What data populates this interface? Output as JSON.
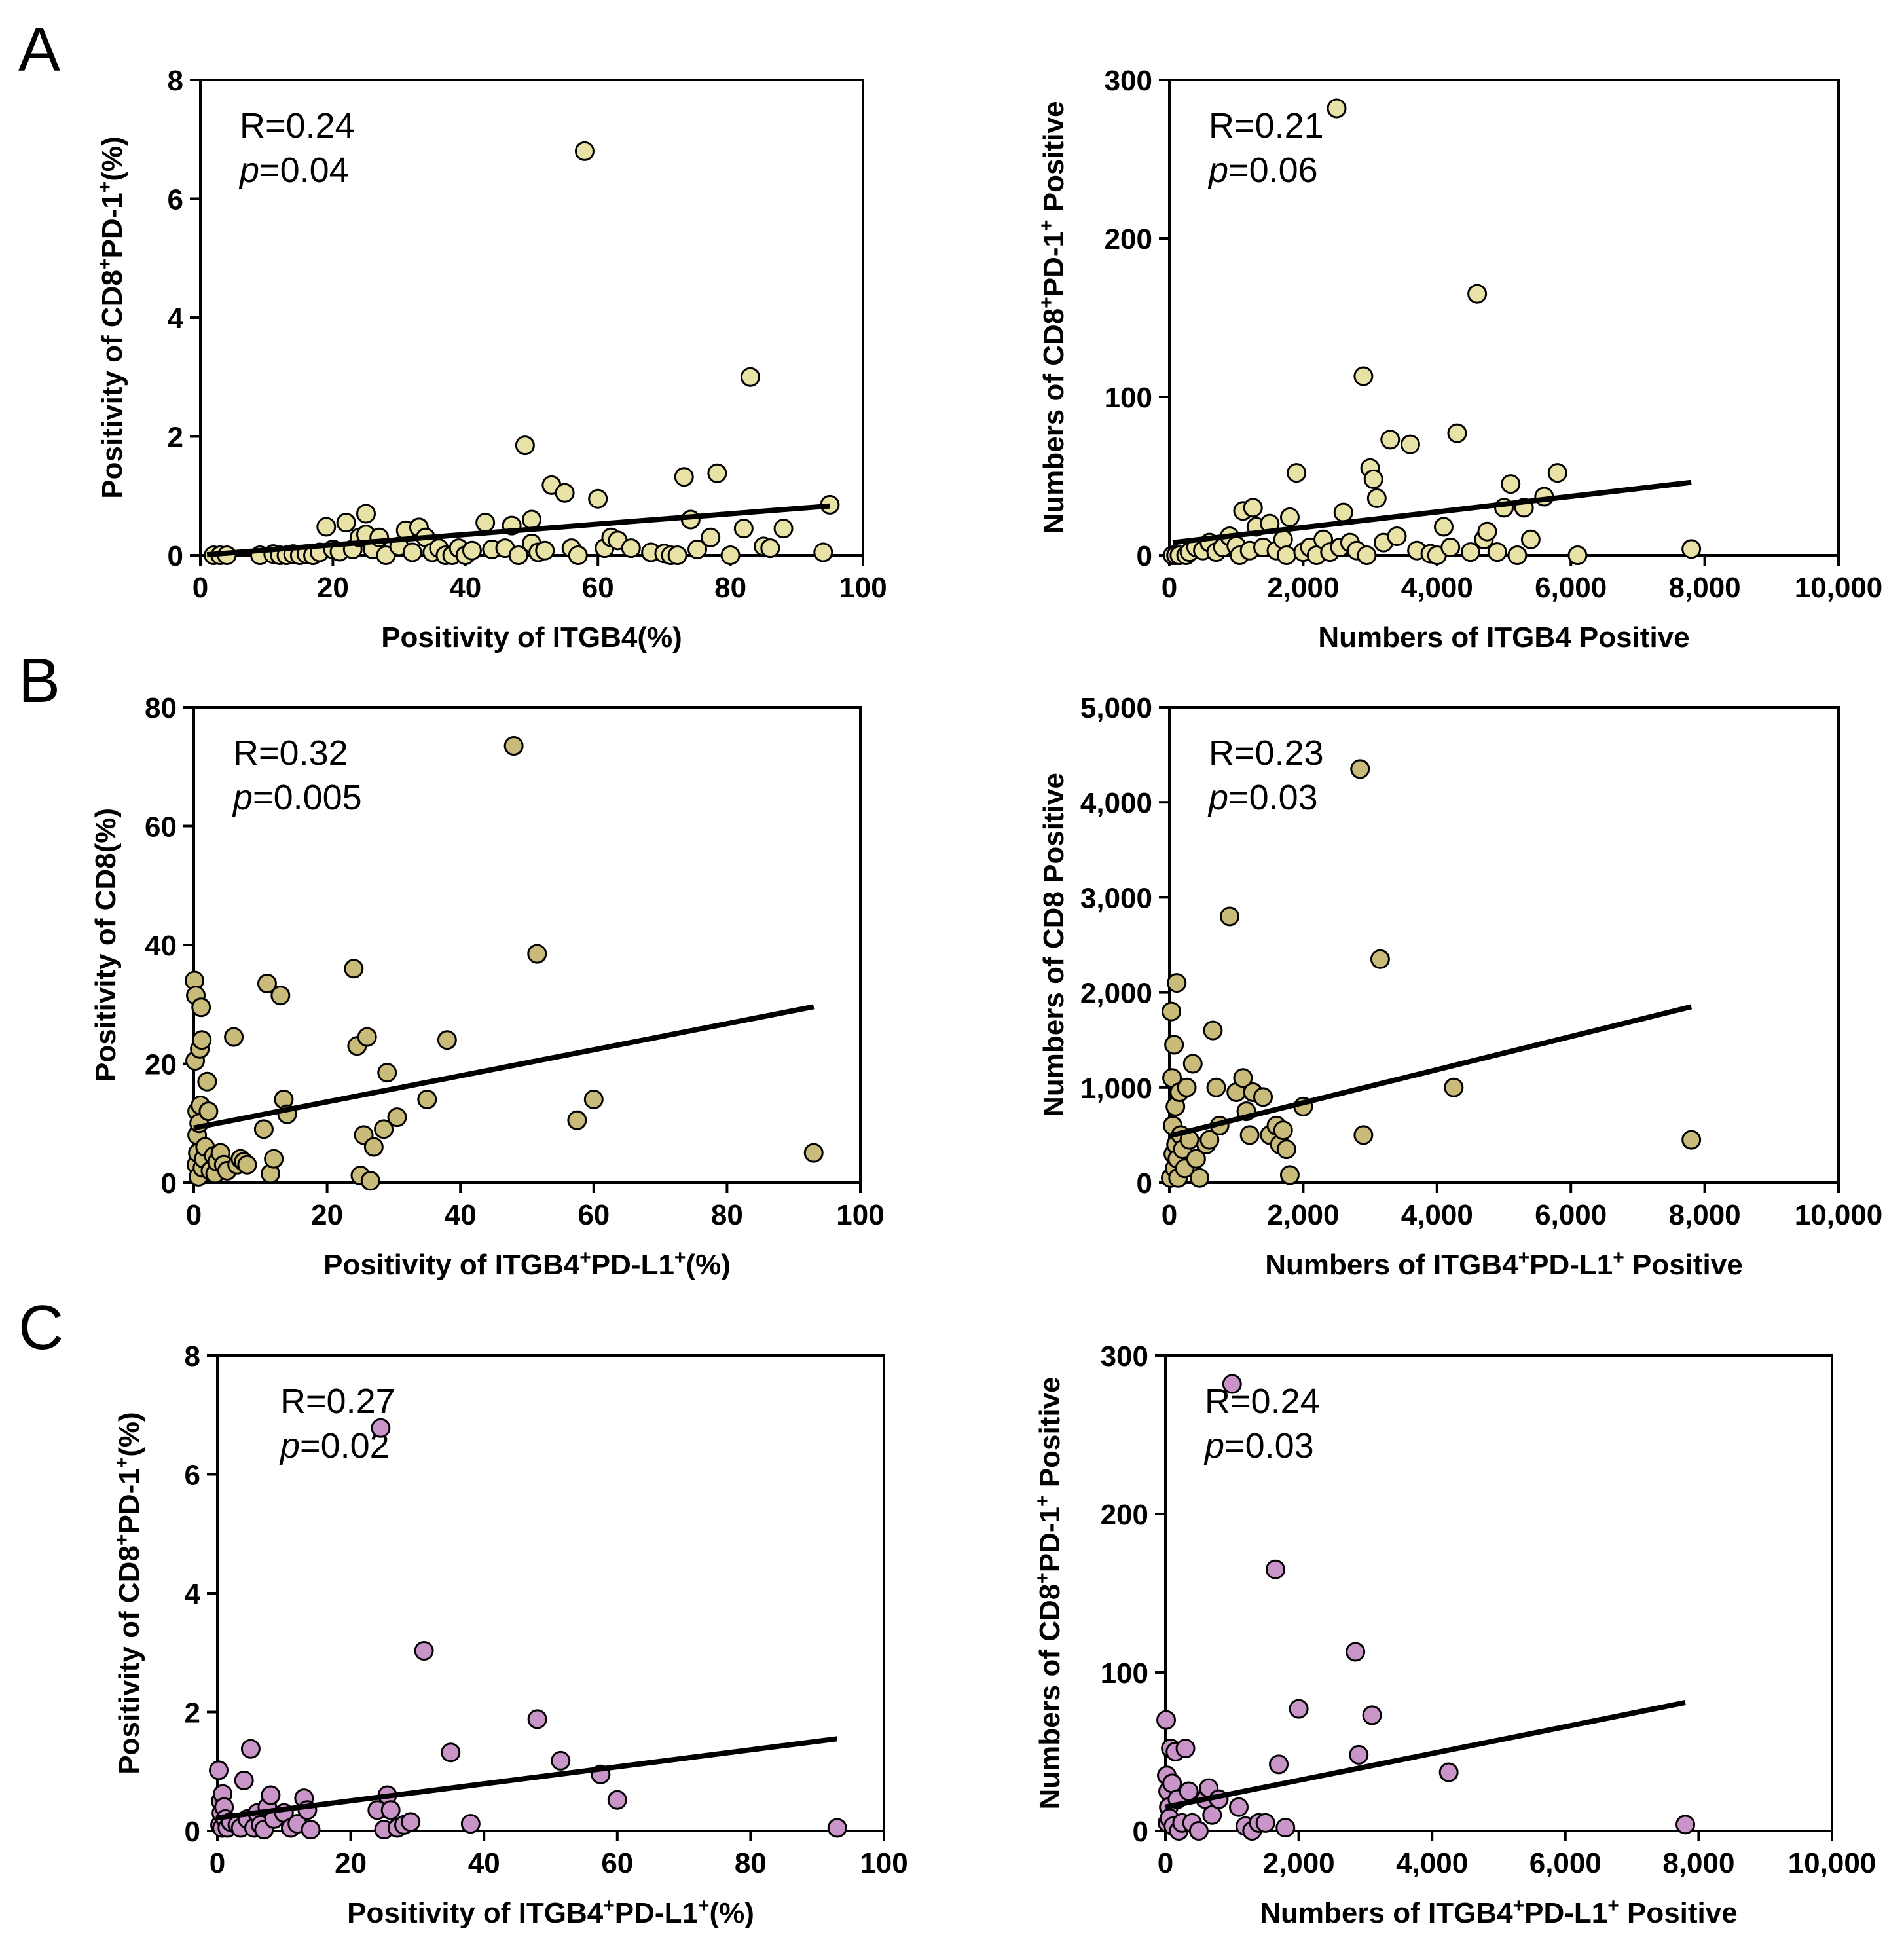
{
  "figure": {
    "panel_letters": [
      "A",
      "B",
      "C"
    ]
  },
  "colors": {
    "yellow_marker": "#e9e2a7",
    "tan_marker": "#c9bb7a",
    "pink_marker": "#c994c7",
    "axis": "#000000"
  },
  "chart_data": [
    {
      "type": "scatter",
      "title": "",
      "xlabel": "Positivity of ITGB4(%)",
      "ylabel": "Positivity of CD8⁺PD-1⁺(%)",
      "xlim": [
        0,
        100
      ],
      "ylim": [
        0,
        8
      ],
      "xticks": [
        0,
        20,
        40,
        60,
        80,
        100
      ],
      "xtick_labels": [
        "0",
        "20",
        "40",
        "60",
        "80",
        "100"
      ],
      "yticks": [
        0,
        2,
        4,
        6,
        8
      ],
      "ytick_labels": [
        "0",
        "2",
        "4",
        "6",
        "8"
      ],
      "r_text": "R=0.24",
      "p_label": "p",
      "p_value": "=0.04",
      "marker_color": "#e9e2a7",
      "fit_line": [
        [
          1,
          0.01
        ],
        [
          95,
          0.83
        ]
      ],
      "x": [
        2,
        3,
        4,
        9,
        11,
        12,
        13,
        14,
        15,
        16,
        17,
        18,
        19,
        20,
        21,
        22,
        23,
        24,
        25,
        25,
        26,
        27,
        28,
        30,
        31,
        32,
        33,
        34,
        35,
        36,
        37,
        38,
        39,
        40,
        41,
        43,
        44,
        46,
        47,
        48,
        49,
        50,
        50,
        51,
        52,
        53,
        55,
        56,
        57,
        58,
        60,
        61,
        62,
        63,
        65,
        68,
        70,
        71,
        72,
        73,
        74,
        75,
        77,
        78,
        80,
        82,
        83,
        85,
        86,
        88,
        94,
        95
      ],
      "y": [
        0.0,
        0.0,
        0.0,
        0.0,
        0.02,
        0.0,
        0.0,
        0.02,
        0.0,
        0.02,
        0.0,
        0.05,
        0.48,
        0.1,
        0.06,
        0.55,
        0.1,
        0.3,
        0.7,
        0.35,
        0.1,
        0.3,
        0.0,
        0.15,
        0.42,
        0.05,
        0.47,
        0.3,
        0.05,
        0.12,
        0.0,
        0.0,
        0.12,
        0.0,
        0.08,
        0.55,
        0.1,
        0.12,
        0.5,
        0.0,
        1.85,
        0.6,
        0.2,
        0.05,
        0.08,
        1.18,
        1.05,
        0.12,
        0.0,
        6.8,
        0.95,
        0.12,
        0.3,
        0.25,
        0.12,
        0.05,
        0.03,
        0.0,
        0.0,
        1.32,
        0.6,
        0.1,
        0.3,
        1.38,
        0.0,
        0.45,
        3.0,
        0.15,
        0.12,
        0.45,
        0.05,
        0.85
      ]
    },
    {
      "type": "scatter",
      "title": "",
      "xlabel": "Numbers of ITGB4 Positive",
      "ylabel": "Numbers of CD8⁺PD-1⁺ Positive",
      "xlim": [
        0,
        10000
      ],
      "ylim": [
        0,
        300
      ],
      "xticks": [
        0,
        2000,
        4000,
        6000,
        8000,
        10000
      ],
      "xtick_labels": [
        "0",
        "2,000",
        "4,000",
        "6,000",
        "8,000",
        "10,000"
      ],
      "yticks": [
        0,
        100,
        200,
        300
      ],
      "ytick_labels": [
        "0",
        "100",
        "200",
        "300"
      ],
      "r_text": "R=0.21",
      "p_label": "p",
      "p_value": "=0.06",
      "marker_color": "#e9e2a7",
      "fit_line": [
        [
          50,
          8
        ],
        [
          7800,
          46
        ]
      ],
      "x": [
        50,
        100,
        150,
        250,
        300,
        400,
        500,
        600,
        700,
        800,
        900,
        1000,
        1050,
        1100,
        1200,
        1250,
        1300,
        1400,
        1500,
        1600,
        1700,
        1750,
        1800,
        1900,
        2000,
        2100,
        2200,
        2300,
        2400,
        2500,
        2550,
        2600,
        2700,
        2800,
        2900,
        2950,
        3000,
        3050,
        3100,
        3200,
        3300,
        3400,
        3600,
        3700,
        3900,
        4000,
        4100,
        4200,
        4300,
        4500,
        4600,
        4700,
        4750,
        4900,
        5000,
        5100,
        5200,
        5300,
        5400,
        5600,
        5800,
        6100,
        7800
      ],
      "y": [
        0,
        0,
        0,
        0,
        2,
        5,
        3,
        8,
        2,
        5,
        12,
        6,
        0,
        28,
        3,
        30,
        18,
        5,
        20,
        3,
        10,
        0,
        24,
        52,
        2,
        5,
        0,
        10,
        2,
        282,
        5,
        27,
        8,
        3,
        113,
        0,
        55,
        48,
        36,
        8,
        73,
        12,
        70,
        3,
        1,
        0,
        18,
        5,
        77,
        2,
        165,
        10,
        15,
        2,
        30,
        45,
        0,
        30,
        10,
        37,
        52,
        0,
        4
      ]
    },
    {
      "type": "scatter",
      "title": "",
      "xlabel": "Positivity of ITGB4⁺PD-L1⁺(%)",
      "ylabel": "Positivity of CD8(%)",
      "xlim": [
        0,
        100
      ],
      "ylim": [
        0,
        80
      ],
      "xticks": [
        0,
        20,
        40,
        60,
        80,
        100
      ],
      "xtick_labels": [
        "0",
        "20",
        "40",
        "60",
        "80",
        "100"
      ],
      "yticks": [
        0,
        20,
        40,
        60,
        80
      ],
      "ytick_labels": [
        "0",
        "20",
        "40",
        "60",
        "80"
      ],
      "r_text": "R=0.32",
      "p_label": "p",
      "p_value": "=0.005",
      "marker_color": "#c9bb7a",
      "fit_line": [
        [
          0,
          9.2
        ],
        [
          93,
          29.6
        ]
      ],
      "x": [
        0.1,
        0.2,
        0.3,
        0.4,
        0.5,
        0.5,
        0.6,
        0.7,
        0.8,
        0.9,
        1.0,
        1.1,
        1.2,
        1.3,
        1.5,
        1.7,
        2,
        2.2,
        2.5,
        3,
        3.2,
        3.5,
        4,
        4.5,
        5,
        6,
        6.5,
        7,
        7.5,
        8,
        10.5,
        11,
        11.5,
        12,
        13,
        13.5,
        14,
        24,
        24.5,
        25,
        25.5,
        26,
        26.5,
        27,
        28.5,
        29,
        30.5,
        35,
        38,
        48,
        51.5,
        57.5,
        60,
        93
      ],
      "y": [
        34,
        20.5,
        31.5,
        3,
        8,
        12,
        5,
        1,
        10,
        22.5,
        13,
        29.5,
        24,
        2.5,
        4,
        6,
        17,
        12,
        2,
        4.5,
        1.5,
        3.5,
        5,
        3,
        2,
        24.5,
        3,
        4,
        3.5,
        3,
        9,
        33.5,
        1.5,
        4,
        31.5,
        14,
        11.5,
        36,
        23,
        1.2,
        8,
        24.5,
        0.3,
        6,
        9,
        18.5,
        11,
        14,
        24,
        73.5,
        38.5,
        10.5,
        14,
        5
      ]
    },
    {
      "type": "scatter",
      "title": "",
      "xlabel": "Numbers of ITGB4⁺PD-L1⁺ Positive",
      "ylabel": "Numbers of CD8 Positive",
      "xlim": [
        0,
        10000
      ],
      "ylim": [
        0,
        5000
      ],
      "xticks": [
        0,
        2000,
        4000,
        6000,
        8000,
        10000
      ],
      "xtick_labels": [
        "0",
        "2,000",
        "4,000",
        "6,000",
        "8,000",
        "10,000"
      ],
      "yticks": [
        0,
        1000,
        2000,
        3000,
        4000,
        5000
      ],
      "ytick_labels": [
        "0",
        "1,000",
        "2,000",
        "3,000",
        "4,000",
        "5,000"
      ],
      "r_text": "R=0.23",
      "p_label": "p",
      "p_value": "=0.03",
      "marker_color": "#c9bb7a",
      "fit_line": [
        [
          50,
          500
        ],
        [
          7800,
          1850
        ]
      ],
      "x": [
        20,
        30,
        40,
        50,
        60,
        70,
        80,
        90,
        100,
        110,
        120,
        130,
        150,
        170,
        200,
        230,
        260,
        300,
        350,
        400,
        450,
        550,
        600,
        650,
        700,
        750,
        900,
        1000,
        1100,
        1150,
        1200,
        1250,
        1400,
        1500,
        1600,
        1650,
        1700,
        1750,
        1800,
        2000,
        2850,
        2900,
        3150,
        4250,
        7800
      ],
      "y": [
        50,
        1800,
        1100,
        600,
        300,
        1450,
        150,
        800,
        400,
        2100,
        250,
        50,
        950,
        500,
        350,
        150,
        1000,
        450,
        1250,
        250,
        50,
        400,
        450,
        1600,
        1000,
        600,
        2800,
        950,
        1100,
        750,
        500,
        950,
        900,
        500,
        600,
        400,
        550,
        350,
        80,
        800,
        4350,
        500,
        2350,
        1000,
        450
      ]
    },
    {
      "type": "scatter",
      "title": "",
      "xlabel": "Positivity of ITGB4⁺PD-L1⁺(%)",
      "ylabel": "Positivity of CD8⁺PD-1⁺(%)",
      "xlim": [
        0,
        100
      ],
      "ylim": [
        0,
        8
      ],
      "xticks": [
        0,
        20,
        40,
        60,
        80,
        100
      ],
      "xtick_labels": [
        "0",
        "20",
        "40",
        "60",
        "80",
        "100"
      ],
      "yticks": [
        0,
        2,
        4,
        6,
        8
      ],
      "ytick_labels": [
        "0",
        "2",
        "4",
        "6",
        "8"
      ],
      "r_text": "R=0.27",
      "p_label": "p",
      "p_value": "=0.02",
      "marker_color": "#c994c7",
      "fit_line": [
        [
          0,
          0.22
        ],
        [
          93,
          1.55
        ]
      ],
      "x": [
        0.2,
        0.4,
        0.5,
        0.6,
        0.7,
        0.8,
        1.0,
        1.2,
        1.5,
        2,
        3,
        3.5,
        4,
        4.5,
        5,
        5.5,
        6,
        6.5,
        7,
        7.5,
        8,
        8.5,
        10,
        11,
        12,
        13,
        13.5,
        14,
        24,
        24.5,
        25,
        25.5,
        26,
        27,
        28,
        29,
        31,
        35,
        38,
        48,
        51.5,
        57.5,
        60,
        93
      ],
      "y": [
        1.02,
        0.1,
        0.5,
        0.3,
        0.05,
        0.62,
        0.4,
        0.2,
        0.05,
        0.15,
        0.1,
        0.05,
        0.85,
        0.2,
        1.38,
        0.05,
        0.3,
        0.1,
        0.02,
        0.4,
        0.6,
        0.2,
        0.3,
        0.05,
        0.12,
        0.55,
        0.35,
        0.02,
        0.35,
        6.78,
        0.02,
        0.6,
        0.35,
        0.05,
        0.1,
        0.15,
        3.03,
        1.32,
        0.12,
        1.88,
        1.18,
        0.95,
        0.52,
        0.05
      ]
    },
    {
      "type": "scatter",
      "title": "",
      "xlabel": "Numbers of ITGB4⁺PD-L1⁺ Positive",
      "ylabel": "Numbers of CD8⁺PD-1⁺ Positive",
      "xlim": [
        0,
        10000
      ],
      "ylim": [
        0,
        300
      ],
      "xticks": [
        0,
        2000,
        4000,
        6000,
        8000,
        10000
      ],
      "xtick_labels": [
        "0",
        "2,000",
        "4,000",
        "6,000",
        "8,000",
        "10,000"
      ],
      "yticks": [
        0,
        100,
        200,
        300
      ],
      "ytick_labels": [
        "0",
        "100",
        "200",
        "300"
      ],
      "r_text": "R=0.24",
      "p_label": "p",
      "p_value": "=0.03",
      "marker_color": "#c994c7",
      "fit_line": [
        [
          0,
          15
        ],
        [
          7800,
          81
        ]
      ],
      "x": [
        10,
        20,
        30,
        40,
        50,
        60,
        80,
        100,
        120,
        150,
        180,
        200,
        250,
        300,
        350,
        400,
        500,
        600,
        650,
        700,
        800,
        1000,
        1100,
        1200,
        1300,
        1400,
        1500,
        1650,
        1700,
        1800,
        2000,
        2850,
        2900,
        3100,
        4250,
        7800
      ],
      "y": [
        70,
        35,
        5,
        25,
        15,
        8,
        52,
        30,
        3,
        50,
        20,
        0,
        5,
        52,
        25,
        5,
        0,
        20,
        27,
        10,
        20,
        282,
        15,
        3,
        0,
        5,
        5,
        165,
        42,
        2,
        77,
        113,
        48,
        73,
        37,
        4
      ]
    }
  ]
}
